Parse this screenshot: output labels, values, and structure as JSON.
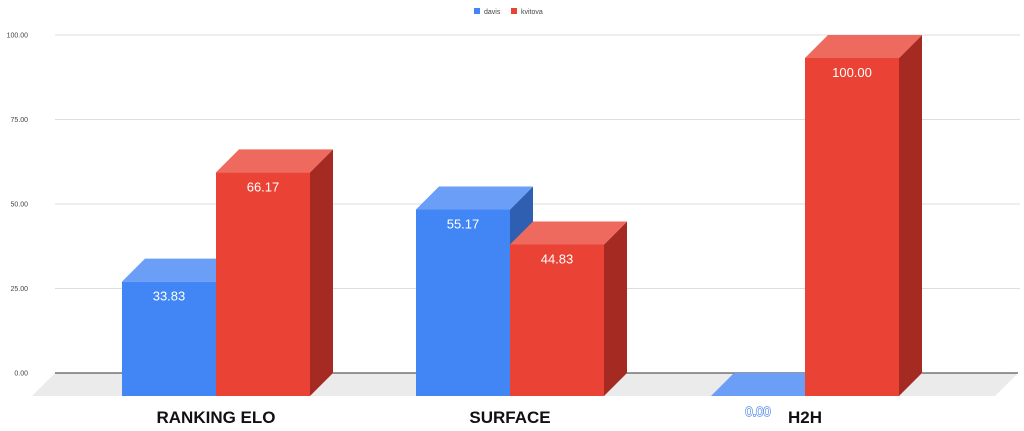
{
  "chart_data": {
    "type": "bar",
    "style": "3d-column",
    "categories": [
      "RANKING ELO",
      "SURFACE",
      "H2H"
    ],
    "series": [
      {
        "name": "davis",
        "values": [
          33.83,
          55.17,
          0.0
        ],
        "color": "#4285f4",
        "top_color": "#6a9ef7",
        "side_color": "#2f5fb0"
      },
      {
        "name": "kvitova",
        "values": [
          66.17,
          44.83,
          100.0
        ],
        "color": "#ea4335",
        "top_color": "#ee6a5f",
        "side_color": "#a52b22"
      }
    ],
    "data_labels": [
      [
        "33.83",
        "55.17",
        "0.00"
      ],
      [
        "66.17",
        "44.83",
        "100.00"
      ]
    ],
    "y_ticks": [
      "0.00",
      "25.00",
      "50.00",
      "75.00",
      "100.00"
    ],
    "ylim": [
      0,
      100
    ],
    "grid": true,
    "legend_position": "top-center"
  }
}
